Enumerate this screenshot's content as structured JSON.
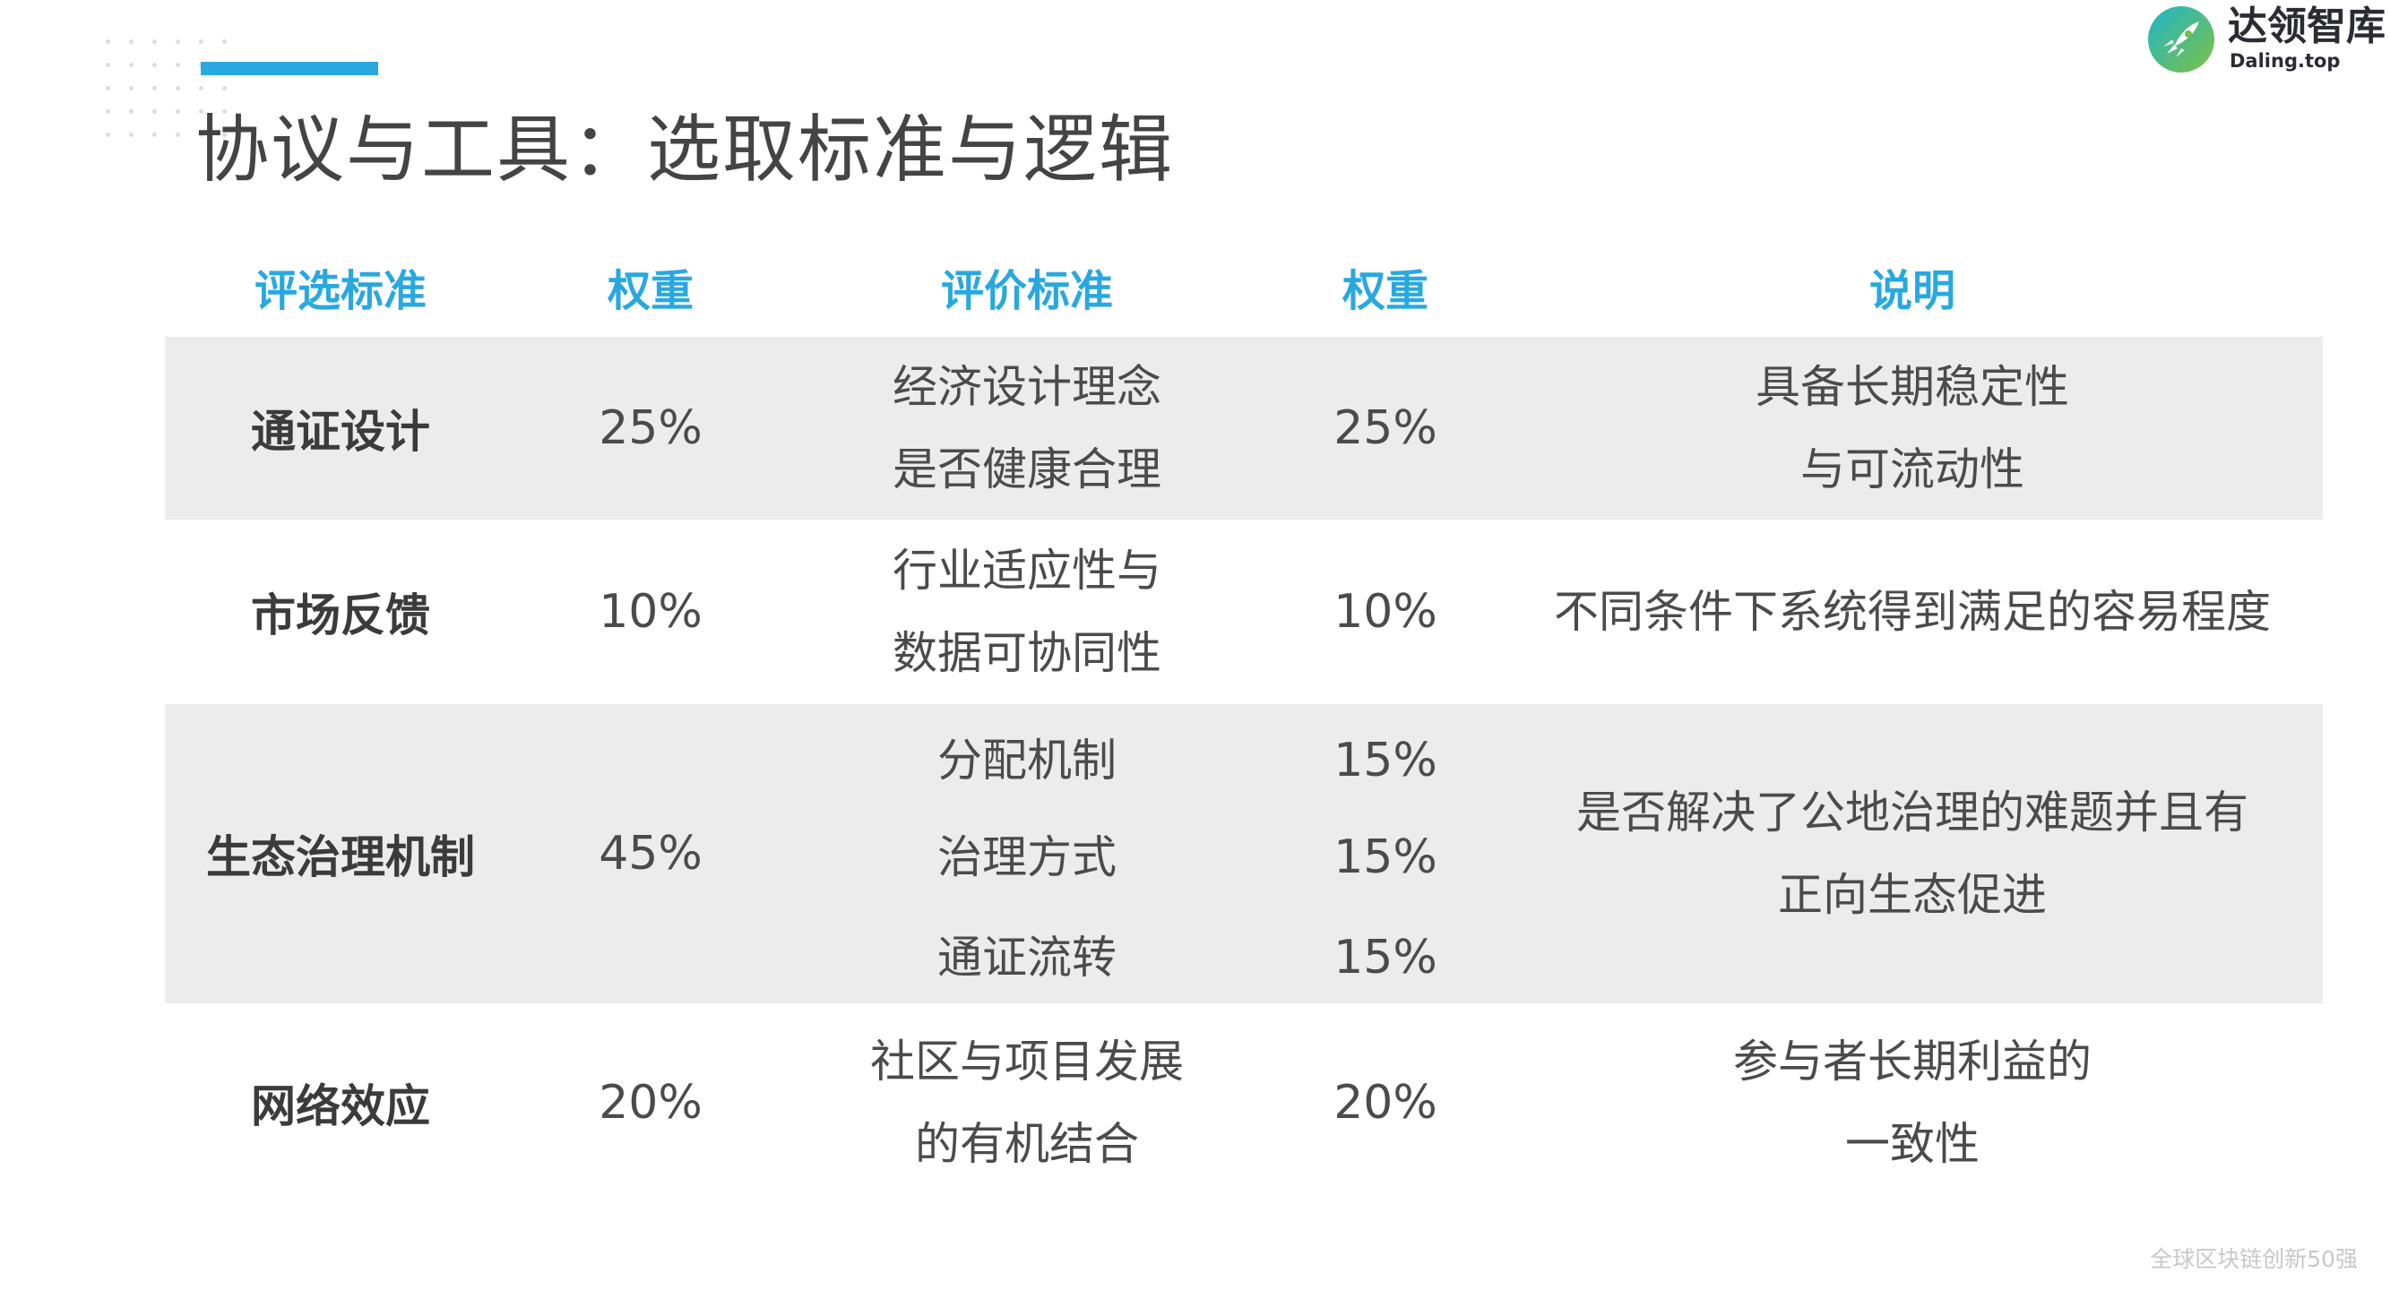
{
  "title": "协议与工具：选取标准与逻辑",
  "brand": {
    "name": "达领智库",
    "domain": "Daling.top",
    "logo_icon": "rocket-icon",
    "colors": [
      "#1fb5c9",
      "#7ec242",
      "#2b2b33"
    ]
  },
  "colors": {
    "accent": "#29a8df",
    "band": "#ececec",
    "title": "#444444"
  },
  "table": {
    "headers": [
      "评选标准",
      "权重",
      "评价标准",
      "权重",
      "说明"
    ],
    "rows": [
      {
        "criterion": "通证设计",
        "weight": "25%",
        "evaluations": [
          {
            "text": [
              "经济设计理念",
              "是否健康合理"
            ],
            "weight": "25%"
          }
        ],
        "description": [
          "具备长期稳定性",
          "与可流动性"
        ]
      },
      {
        "criterion": "市场反馈",
        "weight": "10%",
        "evaluations": [
          {
            "text": [
              "行业适应性与",
              "数据可协同性"
            ],
            "weight": "10%"
          }
        ],
        "description": [
          "不同条件下系统得到满足的容易程度"
        ]
      },
      {
        "criterion": "生态治理机制",
        "weight": "45%",
        "evaluations": [
          {
            "text": [
              "分配机制"
            ],
            "weight": "15%"
          },
          {
            "text": [
              "治理方式"
            ],
            "weight": "15%"
          },
          {
            "text": [
              "通证流转"
            ],
            "weight": "15%"
          }
        ],
        "description": [
          "是否解决了公地治理的难题并且有",
          "正向生态促进"
        ]
      },
      {
        "criterion": "网络效应",
        "weight": "20%",
        "evaluations": [
          {
            "text": [
              "社区与项目发展",
              "的有机结合"
            ],
            "weight": "20%"
          }
        ],
        "description": [
          "参与者长期利益的",
          "一致性"
        ]
      }
    ]
  },
  "footer": "全球区块链创新50强"
}
